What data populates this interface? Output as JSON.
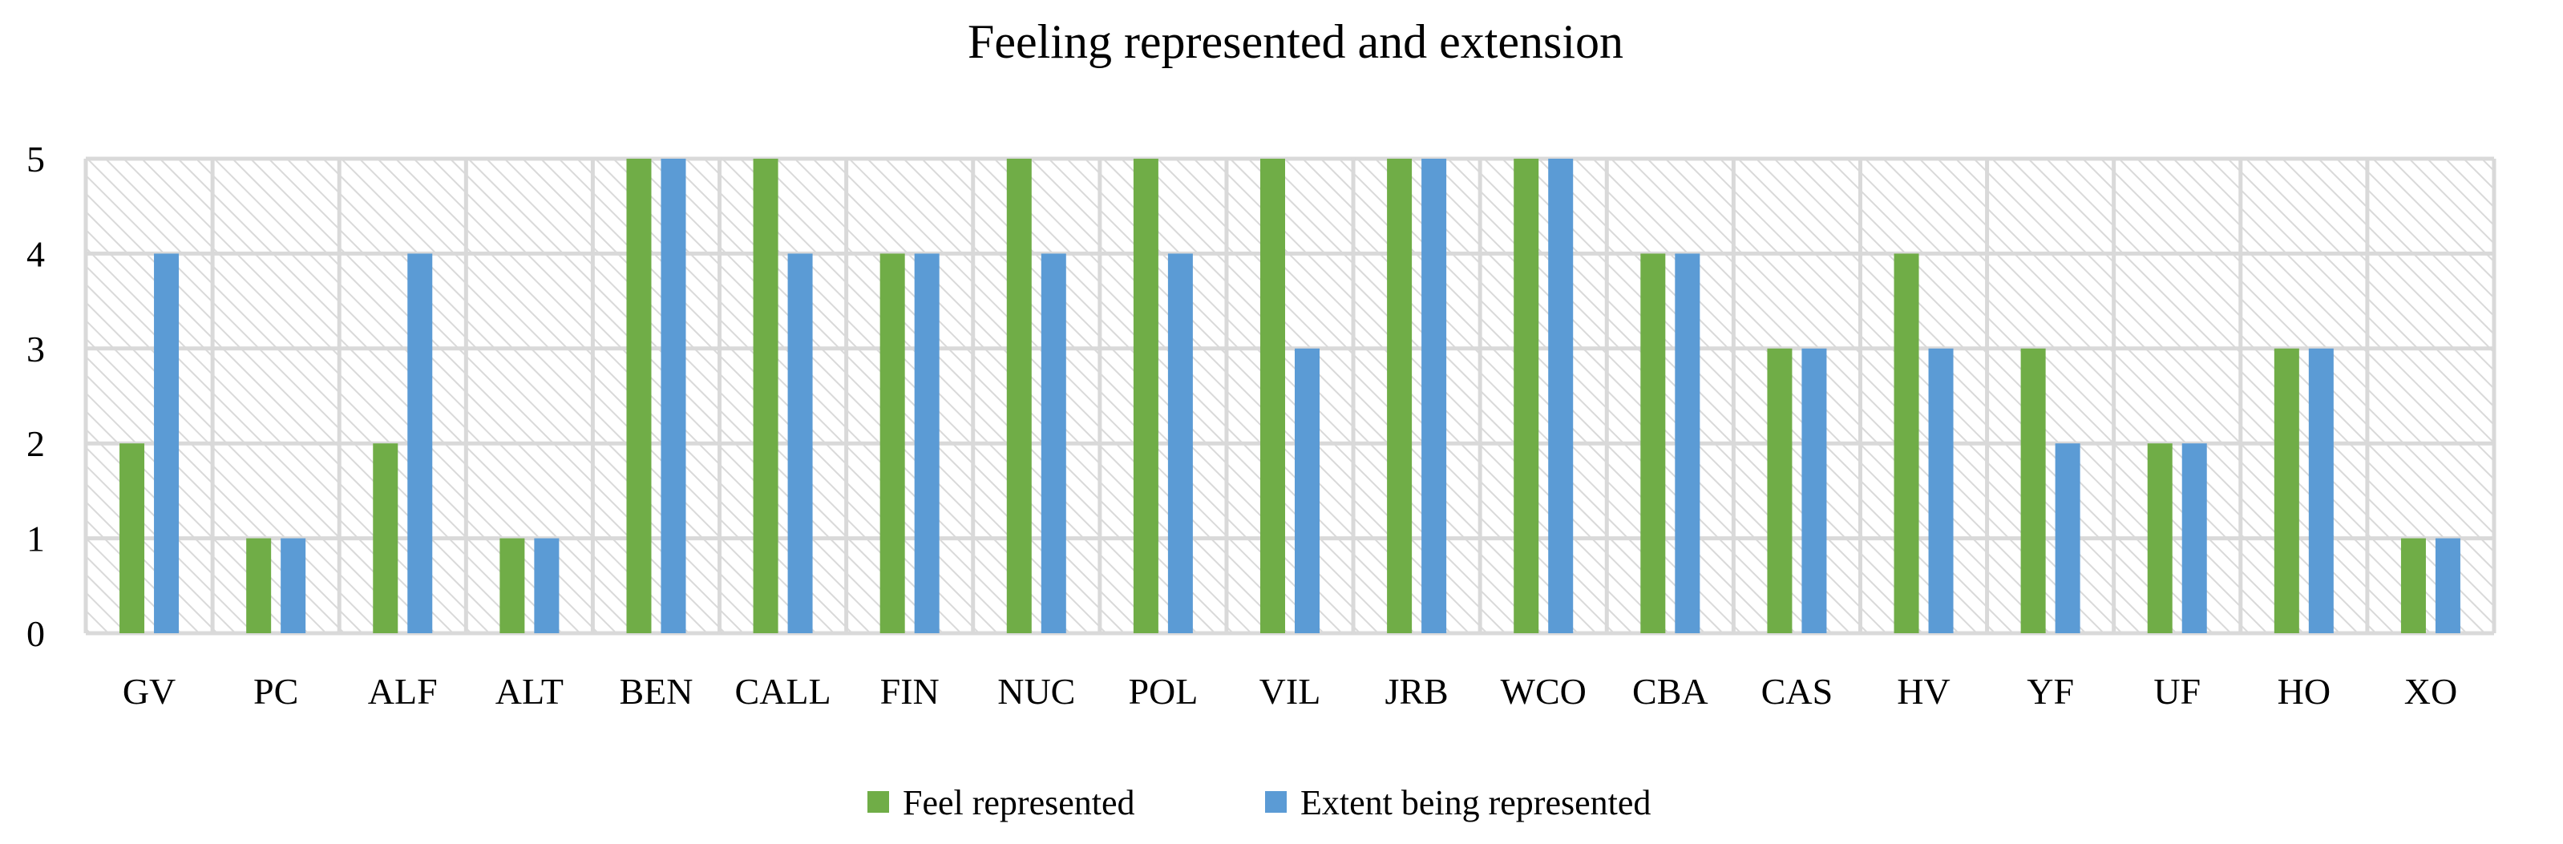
{
  "chart_data": {
    "type": "bar",
    "title": "Feeling represented and extension",
    "xlabel": "",
    "ylabel": "",
    "ylim": [
      0,
      5
    ],
    "yticks": [
      "0",
      "1",
      "2",
      "3",
      "4",
      "5"
    ],
    "grid": true,
    "legend_position": "bottom",
    "categories": [
      "GV",
      "PC",
      "ALF",
      "ALT",
      "BEN",
      "CALL",
      "FIN",
      "NUC",
      "POL",
      "VIL",
      "JRB",
      "WCO",
      "CBA",
      "CAS",
      "HV",
      "YF",
      "UF",
      "HO",
      "XO"
    ],
    "series": [
      {
        "name": "Feel represented",
        "color": "#70ad47",
        "values": [
          2,
          1,
          2,
          1,
          5,
          5,
          4,
          5,
          5,
          5,
          5,
          5,
          4,
          3,
          4,
          3,
          2,
          3,
          1
        ]
      },
      {
        "name": "Extent being represented",
        "color": "#5b9bd5",
        "values": [
          4,
          1,
          4,
          1,
          5,
          4,
          4,
          4,
          4,
          3,
          5,
          5,
          4,
          3,
          3,
          2,
          2,
          3,
          1
        ]
      }
    ]
  }
}
